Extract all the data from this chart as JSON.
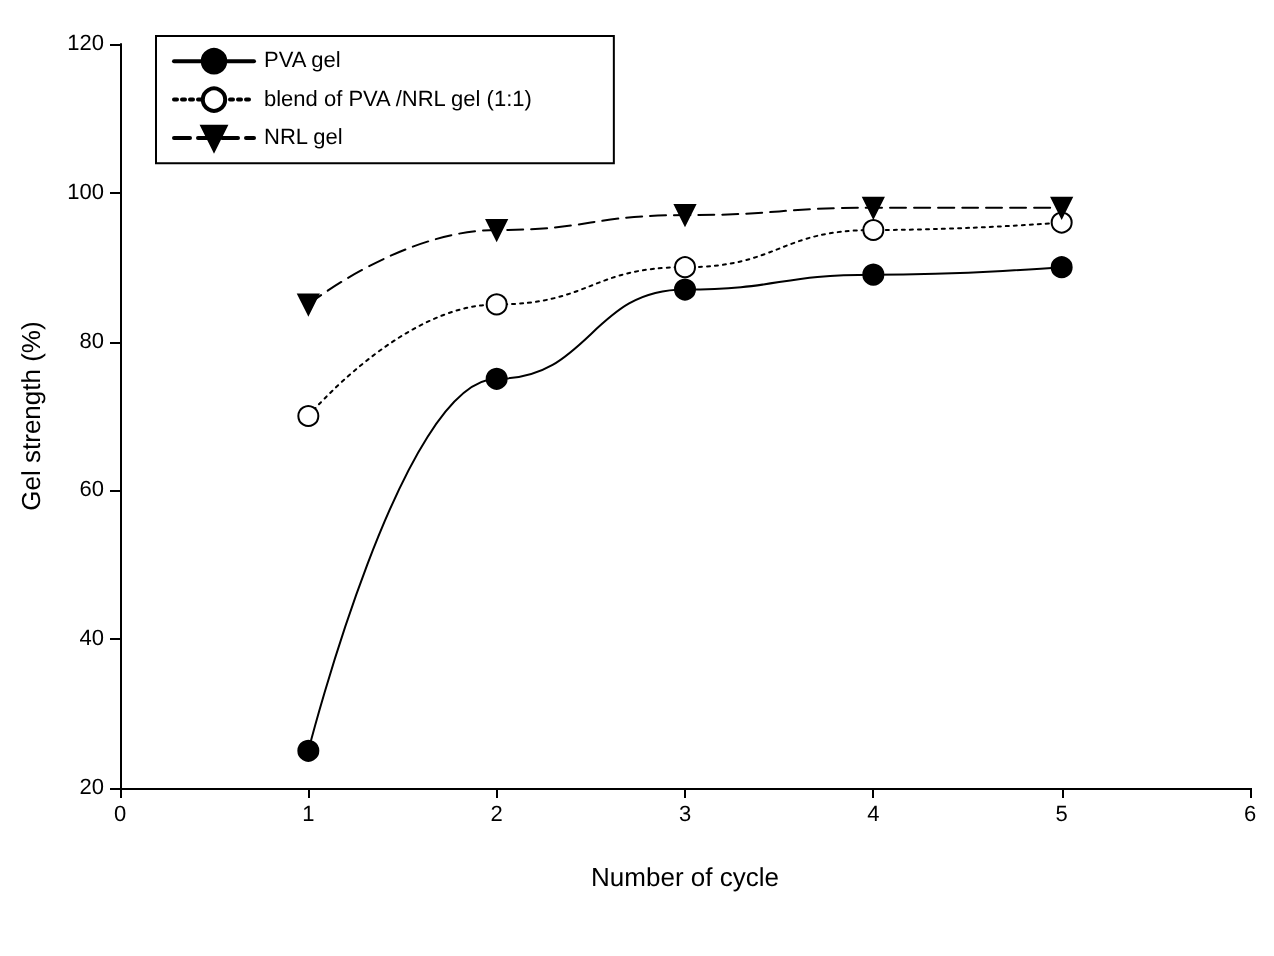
{
  "chart_data": {
    "type": "line",
    "xlabel": "Number of cycle",
    "ylabel": "Gel strength (%)",
    "x": [
      1,
      2,
      3,
      4,
      5
    ],
    "series": [
      {
        "name": "PVA gel",
        "color": "#000000",
        "values": [
          25,
          75,
          87,
          89,
          90
        ],
        "marker": "circle",
        "line_style": "solid"
      },
      {
        "name": "blend of PVA /NRL gel (1:1)",
        "color": "#000000",
        "values": [
          70,
          85,
          90,
          95,
          96
        ],
        "marker": "circle",
        "line_style": "dotted"
      },
      {
        "name": "NRL gel",
        "color": "#000000",
        "values": [
          85,
          95,
          97,
          98,
          98
        ],
        "marker": "triangle",
        "line_style": "dashed"
      }
    ],
    "xlim": [
      0,
      6
    ],
    "xticks": [
      0,
      1,
      2,
      3,
      4,
      5,
      6
    ],
    "ylim": [
      20,
      120
    ],
    "yticks": [
      20,
      40,
      60,
      80,
      100,
      120
    ],
    "grid": false,
    "legend": "top left"
  }
}
